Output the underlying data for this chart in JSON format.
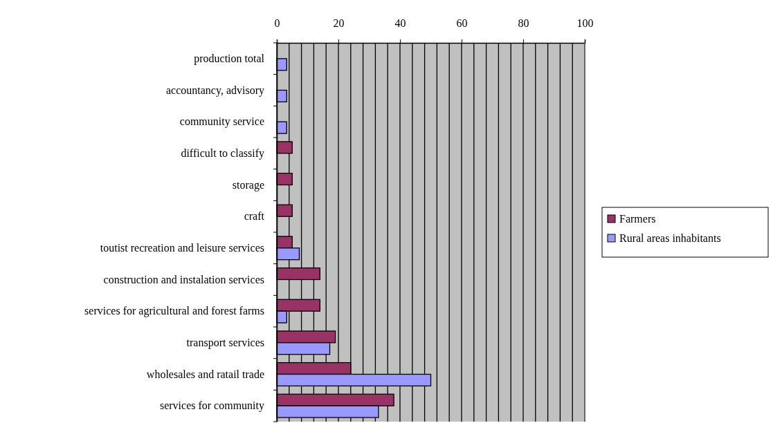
{
  "chart_data": {
    "type": "bar",
    "orientation": "horizontal",
    "categories": [
      "production total",
      "accountancy, advisory ",
      "community service",
      "difficult to classify",
      "storage",
      "craft",
      "toutist recreation and leisure services",
      "construction and instalation services",
      "services for agricultural and forest farms",
      "transport services",
      "wholesales and ratail trade",
      "services for community"
    ],
    "series": [
      {
        "name": "Farmers",
        "color": "#993366",
        "values": [
          null,
          null,
          null,
          5,
          5,
          5,
          5,
          14,
          14,
          19,
          24,
          38
        ]
      },
      {
        "name": "Rural areas inhabitants",
        "color": "#9999ff",
        "values": [
          3.2,
          3.2,
          3.2,
          null,
          null,
          null,
          7.3,
          null,
          3.2,
          17.2,
          50,
          33
        ]
      }
    ],
    "xlim": [
      0,
      100
    ],
    "xticks": [
      0,
      {
        "value": 4,
        "label": null
      },
      {
        "value": 8,
        "label": null
      },
      {
        "value": 12,
        "label": null
      },
      {
        "value": 16,
        "label": null
      },
      20,
      {
        "value": 24,
        "label": null
      },
      {
        "value": 28,
        "label": null
      },
      {
        "value": 32,
        "label": null
      },
      {
        "value": 36,
        "label": null
      },
      40,
      {
        "value": 44,
        "label": null
      },
      {
        "value": 48,
        "label": null
      },
      {
        "value": 52,
        "label": null
      },
      {
        "value": 56,
        "label": null
      },
      60,
      {
        "value": 64,
        "label": null
      },
      {
        "value": 68,
        "label": null
      },
      {
        "value": 72,
        "label": null
      },
      {
        "value": 76,
        "label": null
      },
      80,
      {
        "value": 84,
        "label": null
      },
      {
        "value": 88,
        "label": null
      },
      {
        "value": 92,
        "label": null
      },
      {
        "value": 96,
        "label": null
      },
      100
    ],
    "grid": true,
    "legend": "right"
  }
}
